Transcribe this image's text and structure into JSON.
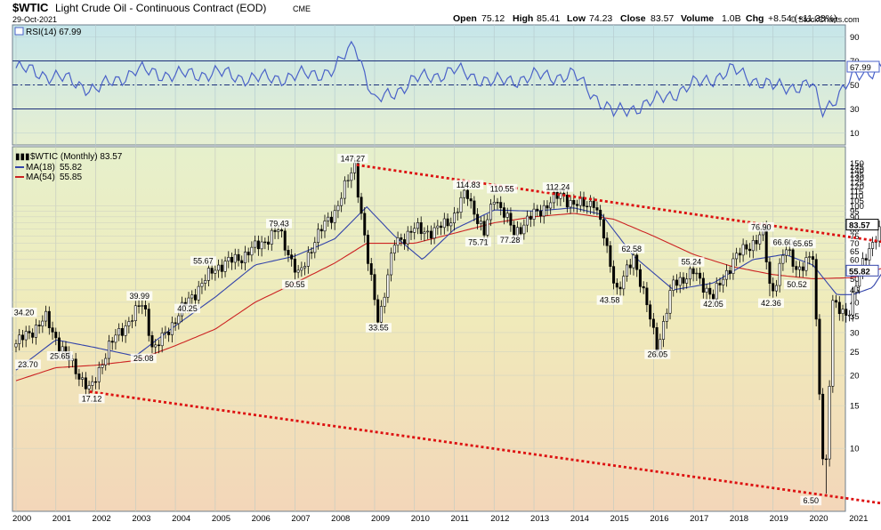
{
  "header": {
    "symbol": "$WTIC",
    "name": "Light Crude Oil - Continuous Contract (EOD)",
    "exchange": "CME",
    "date": "29-Oct-2021",
    "watermark": "© StockCharts.com",
    "open_label": "Open",
    "open": "75.12",
    "high_label": "High",
    "high": "85.41",
    "low_label": "Low",
    "low": "74.23",
    "close_label": "Close",
    "close": "83.57",
    "volume_label": "Volume",
    "volume": "1.0B",
    "chg_label": "Chg",
    "chg": "+8.54 (+11.38%)"
  },
  "chart_data": [
    {
      "type": "line",
      "panel": "RSI",
      "legend": "RSI(14) 67.99",
      "ylim": [
        0,
        100
      ],
      "y_ticks": [
        10,
        30,
        50,
        70,
        90
      ],
      "reference_lines": [
        30,
        50,
        70
      ],
      "last_value_label": "67.99",
      "x": [
        2000.0,
        2001.0,
        2002.0,
        2003.0,
        2004.0,
        2005.0,
        2006.0,
        2007.0,
        2008.0,
        2008.5,
        2009.0,
        2010.0,
        2011.0,
        2012.0,
        2013.0,
        2014.0,
        2015.0,
        2016.0,
        2017.0,
        2018.0,
        2019.0,
        2020.0,
        2020.2,
        2021.0,
        2021.83
      ],
      "series": [
        {
          "values": [
            64,
            57,
            46,
            62,
            58,
            60,
            55,
            57,
            62,
            86,
            35,
            54,
            62,
            52,
            57,
            58,
            26,
            36,
            50,
            62,
            48,
            50,
            27,
            55,
            68
          ]
        }
      ],
      "colors": {
        "line": "#4a62c8",
        "guides": "#1c2f7a"
      }
    },
    {
      "type": "line",
      "panel": "Price",
      "title": "$WTIC (Monthly) 83.57",
      "scale": "log",
      "ylim": [
        5.5,
        175
      ],
      "x_ticks": [
        "2000",
        "2001",
        "2002",
        "2003",
        "2004",
        "2005",
        "2006",
        "2007",
        "2008",
        "2009",
        "2010",
        "2011",
        "2012",
        "2013",
        "2014",
        "2015",
        "2016",
        "2017",
        "2018",
        "2019",
        "2020",
        "2021"
      ],
      "y_ticks": [
        150,
        145,
        140,
        135,
        130,
        125,
        120,
        115,
        110,
        105,
        100,
        95,
        90,
        85,
        80,
        75,
        70,
        65,
        60,
        55,
        50,
        45,
        40,
        35,
        30,
        25,
        20,
        15,
        10
      ],
      "price_series": {
        "name": "$WTIC (Monthly)",
        "last": "83.57",
        "x": [
          2000.0,
          2000.75,
          2001.15,
          2001.87,
          2002.3,
          2003.2,
          2003.45,
          2004.3,
          2005.0,
          2005.7,
          2006.6,
          2007.1,
          2007.5,
          2008.0,
          2008.5,
          2008.85,
          2009.1,
          2009.5,
          2010.0,
          2010.5,
          2011.0,
          2011.3,
          2011.75,
          2012.0,
          2012.5,
          2013.0,
          2013.7,
          2014.0,
          2014.5,
          2014.75,
          2015.1,
          2015.5,
          2016.1,
          2016.5,
          2017.0,
          2017.5,
          2018.0,
          2018.75,
          2018.95,
          2019.3,
          2019.6,
          2020.0,
          2020.3,
          2020.5,
          2020.9,
          2021.3,
          2021.83
        ],
        "values": [
          27,
          34.2,
          25.65,
          17.12,
          26,
          39.99,
          25.08,
          40.25,
          55.67,
          62,
          79.43,
          50.55,
          73,
          95,
          147.27,
          56,
          33.55,
          70,
          80,
          78,
          91,
          114.83,
          75.71,
          110.55,
          77.28,
          92,
          112.24,
          100,
          104,
          75,
          43.58,
          62.58,
          26.05,
          48,
          53,
          42.05,
          60,
          76.9,
          42.36,
          66.6,
          55,
          61,
          6.5,
          39,
          36,
          63,
          83.57
        ]
      },
      "moving_averages": [
        {
          "name": "MA(18)",
          "value": "55.82",
          "color": "#3344aa",
          "x": [
            2000.0,
            2001.0,
            2002.0,
            2003.0,
            2004.0,
            2005.0,
            2006.0,
            2007.0,
            2008.0,
            2008.8,
            2009.5,
            2010.2,
            2011.0,
            2012.0,
            2013.0,
            2014.0,
            2014.7,
            2015.5,
            2016.5,
            2017.5,
            2018.5,
            2019.3,
            2020.0,
            2020.6,
            2021.0,
            2021.5,
            2021.83
          ],
          "values": [
            21,
            28,
            26,
            24,
            32,
            42,
            57,
            62,
            73,
            99,
            75,
            60,
            80,
            96,
            95,
            98,
            92,
            62,
            45,
            48,
            60,
            63,
            57,
            43,
            43,
            46,
            55.82
          ]
        },
        {
          "name": "MA(54)",
          "value": "55.85",
          "color": "#cc2222",
          "x": [
            2000.0,
            2001.0,
            2002.0,
            2003.0,
            2004.0,
            2005.0,
            2006.0,
            2007.0,
            2008.0,
            2008.8,
            2010.0,
            2011.0,
            2012.0,
            2013.0,
            2014.0,
            2015.0,
            2016.0,
            2017.0,
            2018.0,
            2019.0,
            2020.0,
            2021.0,
            2021.83
          ],
          "values": [
            19,
            21.5,
            22,
            23,
            26.5,
            31,
            40,
            48,
            58,
            70,
            70,
            77,
            85,
            90,
            93,
            88,
            75,
            63,
            56,
            52,
            50,
            50.5,
            55.85
          ]
        }
      ],
      "trendlines": [
        {
          "kind": "resistance",
          "style": "dotted",
          "color": "#dd1111",
          "x": [
            2008.55,
            2022.0
          ],
          "values": [
            147.27,
            70
          ]
        },
        {
          "kind": "support",
          "style": "dotted",
          "color": "#dd1111",
          "x": [
            2001.85,
            2022.0
          ],
          "values": [
            17.12,
            5.85
          ]
        }
      ],
      "annotations": [
        {
          "label": "34.20",
          "x": 2000.2,
          "y": 34.2
        },
        {
          "label": "23.70",
          "x": 2000.3,
          "y": 23.7
        },
        {
          "label": "25.65",
          "x": 2001.1,
          "y": 25.65
        },
        {
          "label": "17.12",
          "x": 2001.9,
          "y": 17.12
        },
        {
          "label": "39.99",
          "x": 2003.1,
          "y": 39.99
        },
        {
          "label": "25.08",
          "x": 2003.2,
          "y": 25.08
        },
        {
          "label": "40.25",
          "x": 2004.3,
          "y": 40.25
        },
        {
          "label": "55.67",
          "x": 2004.7,
          "y": 55.67
        },
        {
          "label": "79.43",
          "x": 2006.6,
          "y": 79.43
        },
        {
          "label": "50.55",
          "x": 2007.0,
          "y": 50.55
        },
        {
          "label": "147.27",
          "x": 2008.45,
          "y": 147.27
        },
        {
          "label": "33.55",
          "x": 2009.1,
          "y": 33.55
        },
        {
          "label": "114.83",
          "x": 2011.35,
          "y": 114.83
        },
        {
          "label": "75.71",
          "x": 2011.6,
          "y": 75.71
        },
        {
          "label": "110.55",
          "x": 2012.2,
          "y": 110.55
        },
        {
          "label": "77.28",
          "x": 2012.4,
          "y": 77.28
        },
        {
          "label": "112.24",
          "x": 2013.6,
          "y": 112.24
        },
        {
          "label": "62.58",
          "x": 2015.45,
          "y": 62.58
        },
        {
          "label": "43.58",
          "x": 2014.9,
          "y": 43.58
        },
        {
          "label": "26.05",
          "x": 2016.1,
          "y": 26.05
        },
        {
          "label": "55.24",
          "x": 2016.95,
          "y": 55.24
        },
        {
          "label": "42.05",
          "x": 2017.5,
          "y": 42.05
        },
        {
          "label": "76.90",
          "x": 2018.7,
          "y": 76.9
        },
        {
          "label": "66.60",
          "x": 2019.25,
          "y": 66.6
        },
        {
          "label": "42.36",
          "x": 2018.95,
          "y": 42.36
        },
        {
          "label": "65.65",
          "x": 2019.75,
          "y": 65.65
        },
        {
          "label": "50.52",
          "x": 2019.6,
          "y": 50.52
        },
        {
          "label": "6.50",
          "x": 2019.95,
          "y": 6.5
        }
      ],
      "axis_value_labels": [
        {
          "label": "83.57",
          "y": 83.57,
          "color": "#000000"
        },
        {
          "label": "55.82",
          "y": 54.0,
          "color": "#3344aa"
        }
      ]
    }
  ]
}
